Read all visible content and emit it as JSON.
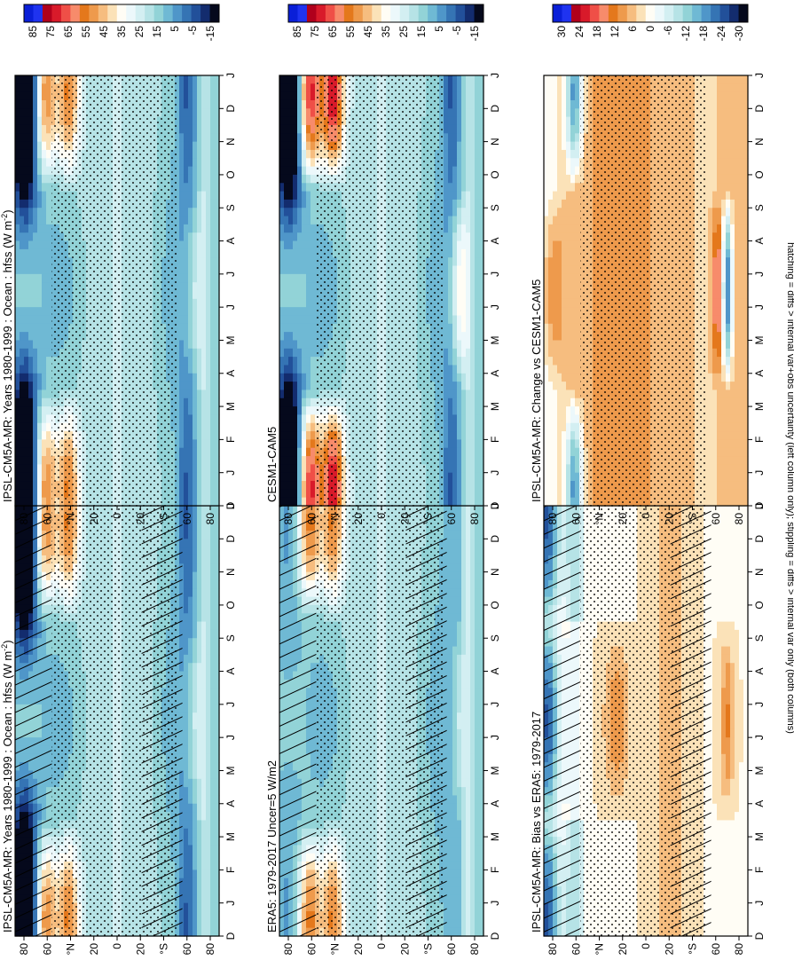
{
  "chart_data": {
    "type": "heatmap",
    "footnote": "hatching = diffs > internal var+obs uncertainty (left column only); stippling = diffs > internal var only (both columns)",
    "x_ticks": [
      "D",
      "J",
      "F",
      "M",
      "A",
      "M",
      "J",
      "J",
      "A",
      "S",
      "O",
      "N",
      "D",
      "J"
    ],
    "y_ticks": [
      "80",
      "60",
      "°N",
      "20",
      "0",
      "20",
      "°S",
      "60",
      "80"
    ],
    "panels": [
      {
        "id": "p_model_left",
        "title": "IPSL-CM5A-MR: Years 1980-1999 : Ocean : hfss (W m",
        "title_sup": "-2",
        "title_tail": ")",
        "field": "climo_model",
        "stipple": true,
        "hatch": true,
        "colorbar": {
          "labels": [
            "85",
            "75",
            "65",
            "55",
            "45",
            "35",
            "25",
            "15",
            "5",
            "-5",
            "-15"
          ],
          "colors": [
            "#0a1fd8",
            "#1f33f0",
            "#b0001c",
            "#d81a2a",
            "#ef4f47",
            "#f78b6b",
            "#e4781c",
            "#ee9a4c",
            "#f6bd7f",
            "#fbe2b8",
            "#fffdf5",
            "#ecf8fb",
            "#d3eff2",
            "#b6e3e6",
            "#92d3d7",
            "#6fb9d4",
            "#4f96c9",
            "#3574b4",
            "#22509a",
            "#132c6e",
            "#05091c"
          ]
        }
      },
      {
        "id": "p_model_right",
        "title": "IPSL-CM5A-MR: Years 1980-1999 : Ocean : hfss (W m",
        "title_sup": "-2",
        "title_tail": ")",
        "field": "climo_model",
        "stipple": true,
        "hatch": false,
        "colorbar": {
          "labels": [
            "85",
            "75",
            "65",
            "55",
            "45",
            "35",
            "25",
            "15",
            "5",
            "-5",
            "-15"
          ],
          "colors": [
            "#0a1fd8",
            "#1f33f0",
            "#b0001c",
            "#d81a2a",
            "#ef4f47",
            "#f78b6b",
            "#e4781c",
            "#ee9a4c",
            "#f6bd7f",
            "#fbe2b8",
            "#fffdf5",
            "#ecf8fb",
            "#d3eff2",
            "#b6e3e6",
            "#92d3d7",
            "#6fb9d4",
            "#4f96c9",
            "#3574b4",
            "#22509a",
            "#132c6e",
            "#05091c"
          ]
        }
      },
      {
        "id": "p_obs",
        "title": "ERA5: 1979-2017 Uncer=5 W/m2",
        "title_sup": "",
        "title_tail": "",
        "field": "climo_obs",
        "stipple": true,
        "hatch": true,
        "colorbar": {
          "labels": [
            "85",
            "75",
            "65",
            "55",
            "45",
            "35",
            "25",
            "15",
            "5",
            "-5",
            "-15"
          ],
          "colors": [
            "#0a1fd8",
            "#1f33f0",
            "#b0001c",
            "#d81a2a",
            "#ef4f47",
            "#f78b6b",
            "#e4781c",
            "#ee9a4c",
            "#f6bd7f",
            "#fbe2b8",
            "#fffdf5",
            "#ecf8fb",
            "#d3eff2",
            "#b6e3e6",
            "#92d3d7",
            "#6fb9d4",
            "#4f96c9",
            "#3574b4",
            "#22509a",
            "#132c6e",
            "#05091c"
          ]
        }
      },
      {
        "id": "p_ref",
        "title": "CESM1-CAM5",
        "title_sup": "",
        "title_tail": "",
        "field": "climo_ref",
        "stipple": true,
        "hatch": false,
        "colorbar": {
          "labels": [
            "85",
            "75",
            "65",
            "55",
            "45",
            "35",
            "25",
            "15",
            "5",
            "-5",
            "-15"
          ],
          "colors": [
            "#0a1fd8",
            "#1f33f0",
            "#b0001c",
            "#d81a2a",
            "#ef4f47",
            "#f78b6b",
            "#e4781c",
            "#ee9a4c",
            "#f6bd7f",
            "#fbe2b8",
            "#fffdf5",
            "#ecf8fb",
            "#d3eff2",
            "#b6e3e6",
            "#92d3d7",
            "#6fb9d4",
            "#4f96c9",
            "#3574b4",
            "#22509a",
            "#132c6e",
            "#05091c"
          ]
        }
      },
      {
        "id": "p_bias",
        "title": "IPSL-CM5A-MR: Bias vs ERA5: 1979-2017",
        "title_sup": "",
        "title_tail": "",
        "field": "bias",
        "stipple": true,
        "hatch": true,
        "colorbar": {
          "labels": [
            "30",
            "24",
            "18",
            "12",
            "6",
            "0",
            "-6",
            "-12",
            "-18",
            "-24",
            "-30"
          ],
          "colors": [
            "#0a1fd8",
            "#1f33f0",
            "#b0001c",
            "#d81a2a",
            "#ef4f47",
            "#f78b6b",
            "#e4781c",
            "#ee9a4c",
            "#f6bd7f",
            "#fbe2b8",
            "#fffdf5",
            "#ecf8fb",
            "#d3eff2",
            "#b6e3e6",
            "#92d3d7",
            "#6fb9d4",
            "#4f96c9",
            "#3574b4",
            "#22509a",
            "#132c6e",
            "#05091c"
          ]
        }
      },
      {
        "id": "p_change",
        "title": "IPSL-CM5A-MR: Change vs CESM1-CAM5",
        "title_sup": "",
        "title_tail": "",
        "field": "change",
        "stipple": true,
        "hatch": false,
        "colorbar": {
          "labels": [
            "30",
            "24",
            "18",
            "12",
            "6",
            "0",
            "-6",
            "-12",
            "-18",
            "-24",
            "-30"
          ],
          "colors": [
            "#0a1fd8",
            "#1f33f0",
            "#b0001c",
            "#d81a2a",
            "#ef4f47",
            "#f78b6b",
            "#e4781c",
            "#ee9a4c",
            "#f6bd7f",
            "#fbe2b8",
            "#fffdf5",
            "#ecf8fb",
            "#d3eff2",
            "#b6e3e6",
            "#92d3d7",
            "#6fb9d4",
            "#4f96c9",
            "#3574b4",
            "#22509a",
            "#132c6e",
            "#05091c"
          ]
        }
      }
    ]
  }
}
